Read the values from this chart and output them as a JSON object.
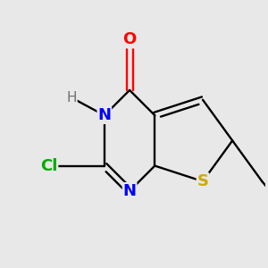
{
  "background_color": "#e8e8e8",
  "bond_color": "#000000",
  "atom_colors": {
    "O": "#ff0000",
    "N": "#0000ff",
    "S": "#ccaa00",
    "Cl": "#00aa00",
    "C": "#000000",
    "H": "#808080"
  },
  "figsize": [
    3.0,
    3.0
  ],
  "dpi": 100
}
